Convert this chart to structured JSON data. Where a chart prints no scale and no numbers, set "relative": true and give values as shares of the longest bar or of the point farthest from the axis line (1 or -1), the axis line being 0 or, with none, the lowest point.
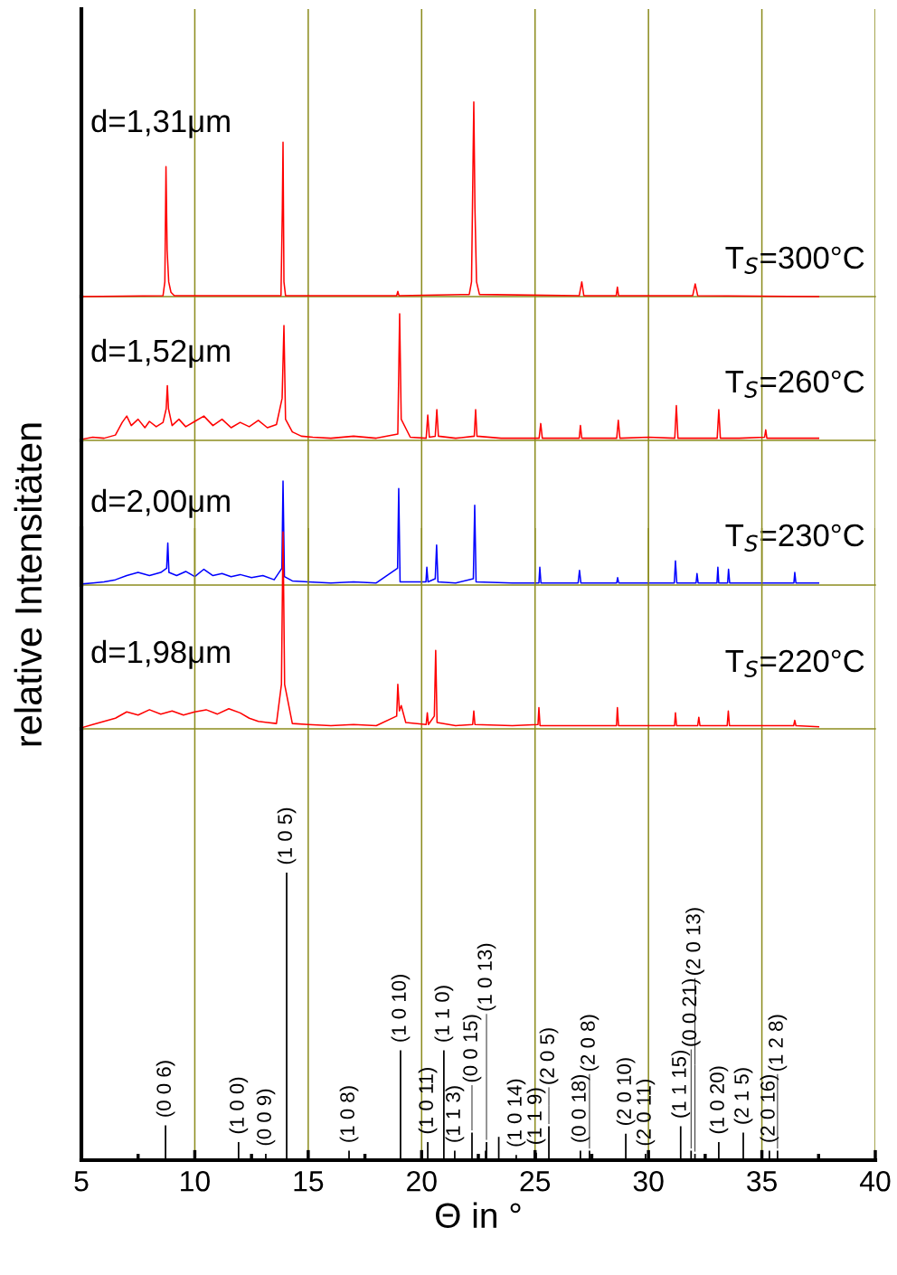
{
  "chart_data": [
    {
      "type": "line",
      "relative": true,
      "grid": "x",
      "tick_labels": false,
      "xlim": [
        5,
        40
      ],
      "xticks": [
        5,
        10,
        15,
        20,
        25,
        30,
        35,
        40
      ],
      "annotations": [
        "d=1,31μm"
      ],
      "series": [
        {
          "name": "T$_{S}$=300°C",
          "color": "#ff0000",
          "x": [
            5,
            8.6,
            8.68,
            8.73,
            8.78,
            8.85,
            8.95,
            9.1,
            13.8,
            13.86,
            13.89,
            13.93,
            14.0,
            18.9,
            18.95,
            19.0,
            22.1,
            22.2,
            22.27,
            22.3,
            22.35,
            22.42,
            22.55,
            26.95,
            27.06,
            27.15,
            28.58,
            28.63,
            28.68,
            31.95,
            32.06,
            32.17,
            37.5
          ],
          "values": [
            0,
            0.005,
            0.076,
            0.668,
            0.239,
            0.076,
            0.022,
            0.005,
            0.005,
            0.457,
            0.793,
            0.076,
            0.005,
            0.005,
            0.027,
            0.005,
            0.011,
            0.076,
            0.728,
            1,
            0.457,
            0.076,
            0.011,
            0.005,
            0.076,
            0.005,
            0.005,
            0.049,
            0.005,
            0.005,
            0.065,
            0.005,
            0
          ]
        }
      ]
    },
    {
      "type": "line",
      "relative": true,
      "grid": "x",
      "tick_labels": false,
      "xlim": [
        5,
        40
      ],
      "xticks": [
        5,
        10,
        15,
        20,
        25,
        30,
        35,
        40
      ],
      "annotations": [
        "d=1,52μm"
      ],
      "series": [
        {
          "name": "T$_{S}$=260°C",
          "color": "#ff0000",
          "x": [
            5,
            5.5,
            6,
            6.5,
            6.8,
            7.0,
            7.2,
            7.5,
            7.8,
            8.0,
            8.3,
            8.6,
            8.74,
            8.79,
            8.84,
            9.0,
            9.3,
            9.6,
            10.0,
            10.4,
            10.8,
            11.2,
            11.6,
            12.0,
            12.4,
            12.8,
            13.2,
            13.6,
            13.85,
            13.93,
            14.0,
            14.3,
            14.7,
            15.2,
            16,
            17,
            18,
            18.95,
            19.03,
            19.1,
            19.5,
            20.2,
            20.27,
            20.34,
            20.6,
            20.67,
            20.74,
            21.5,
            22.32,
            22.38,
            22.44,
            23.5,
            25.18,
            25.25,
            25.32,
            26.95,
            27.0,
            27.06,
            28.6,
            28.67,
            28.74,
            30,
            31.16,
            31.23,
            31.3,
            33.03,
            33.1,
            33.17,
            34,
            35.12,
            35.17,
            35.22,
            36.5,
            37.5
          ],
          "values": [
            0.008,
            0.025,
            0.017,
            0.042,
            0.142,
            0.192,
            0.117,
            0.167,
            0.1,
            0.15,
            0.108,
            0.142,
            0.25,
            0.433,
            0.25,
            0.117,
            0.167,
            0.108,
            0.15,
            0.192,
            0.117,
            0.167,
            0.1,
            0.142,
            0.108,
            0.158,
            0.1,
            0.125,
            0.333,
            0.908,
            0.167,
            0.067,
            0.033,
            0.025,
            0.017,
            0.033,
            0.017,
            0.05,
            1,
            0.167,
            0.025,
            0.017,
            0.2,
            0.025,
            0.033,
            0.242,
            0.033,
            0.017,
            0.033,
            0.242,
            0.033,
            0.017,
            0.017,
            0.133,
            0.017,
            0.017,
            0.117,
            0.017,
            0.017,
            0.158,
            0.017,
            0.025,
            0.017,
            0.275,
            0.017,
            0.017,
            0.242,
            0.017,
            0.017,
            0.025,
            0.083,
            0.017,
            0.017,
            0.017
          ]
        }
      ]
    },
    {
      "type": "line",
      "relative": true,
      "grid": "x",
      "tick_labels": false,
      "xlim": [
        5,
        40
      ],
      "xticks": [
        5,
        10,
        15,
        20,
        25,
        30,
        35,
        40
      ],
      "annotations": [
        "d=2,00μm"
      ],
      "series": [
        {
          "name": "T$_{S}$=230°C",
          "color": "#0000ff",
          "x": [
            5,
            5.5,
            6,
            6.5,
            7.0,
            7.5,
            8.0,
            8.5,
            8.76,
            8.81,
            8.86,
            9.2,
            9.6,
            10.0,
            10.4,
            10.8,
            11.2,
            11.6,
            12.0,
            12.5,
            13.0,
            13.5,
            13.84,
            13.89,
            13.95,
            14.3,
            15,
            16,
            17,
            18,
            18.94,
            18.99,
            19.05,
            20.19,
            20.23,
            20.28,
            20.6,
            20.66,
            20.72,
            21.5,
            22.28,
            22.34,
            22.4,
            24,
            25.17,
            25.21,
            25.26,
            26.9,
            26.96,
            27.02,
            28.6,
            28.64,
            28.69,
            30,
            31.14,
            31.19,
            31.25,
            32.1,
            32.14,
            32.19,
            33.02,
            33.06,
            33.1,
            33.49,
            33.53,
            33.58,
            35,
            36.41,
            36.45,
            36.5,
            37.5
          ],
          "values": [
            0.01,
            0.02,
            0.03,
            0.051,
            0.091,
            0.121,
            0.091,
            0.121,
            0.162,
            0.404,
            0.121,
            0.091,
            0.131,
            0.081,
            0.152,
            0.091,
            0.111,
            0.081,
            0.101,
            0.071,
            0.091,
            0.051,
            0.162,
            1,
            0.081,
            0.04,
            0.03,
            0.02,
            0.03,
            0.02,
            0.162,
            0.929,
            0.03,
            0.03,
            0.172,
            0.03,
            0.061,
            0.384,
            0.03,
            0.02,
            0.061,
            0.768,
            0.03,
            0.02,
            0.02,
            0.172,
            0.02,
            0.02,
            0.141,
            0.02,
            0.02,
            0.071,
            0.02,
            0.02,
            0.02,
            0.232,
            0.02,
            0.02,
            0.111,
            0.02,
            0.02,
            0.172,
            0.02,
            0.02,
            0.152,
            0.02,
            0.02,
            0.02,
            0.121,
            0.02,
            0.02
          ]
        }
      ]
    },
    {
      "type": "line",
      "relative": true,
      "grid": "x",
      "tick_labels": false,
      "xlim": [
        5,
        40
      ],
      "xticks": [
        5,
        10,
        15,
        20,
        25,
        30,
        35,
        40
      ],
      "annotations": [
        "d=1,98μm"
      ],
      "series": [
        {
          "name": "T$_{S}$=220°C",
          "color": "#ff0000",
          "x": [
            5,
            5.5,
            6,
            6.5,
            7.0,
            7.5,
            8.0,
            8.5,
            9.0,
            9.5,
            10.0,
            10.5,
            11.0,
            11.5,
            12.0,
            12.4,
            12.8,
            13.2,
            13.6,
            13.82,
            13.89,
            13.96,
            14.3,
            15,
            16,
            17,
            18,
            18.9,
            18.95,
            19.02,
            19.1,
            19.3,
            20.2,
            20.25,
            20.3,
            20.56,
            20.62,
            20.68,
            21.5,
            22.25,
            22.3,
            22.35,
            24,
            25.13,
            25.17,
            25.22,
            27,
            28.59,
            28.63,
            28.68,
            30,
            31.15,
            31.19,
            31.24,
            32.17,
            32.22,
            32.27,
            33.47,
            33.52,
            33.57,
            35,
            36.4,
            36.45,
            36.5,
            37.5
          ],
          "values": [
            0.005,
            0.022,
            0.038,
            0.054,
            0.086,
            0.07,
            0.097,
            0.075,
            0.091,
            0.07,
            0.086,
            0.097,
            0.075,
            0.102,
            0.081,
            0.054,
            0.038,
            0.032,
            0.027,
            0.226,
            1,
            0.226,
            0.027,
            0.022,
            0.016,
            0.022,
            0.016,
            0.065,
            0.226,
            0.091,
            0.118,
            0.032,
            0.022,
            0.081,
            0.022,
            0.065,
            0.398,
            0.032,
            0.016,
            0.022,
            0.091,
            0.022,
            0.016,
            0.022,
            0.108,
            0.016,
            0.016,
            0.016,
            0.108,
            0.016,
            0.016,
            0.016,
            0.081,
            0.016,
            0.016,
            0.059,
            0.016,
            0.016,
            0.091,
            0.016,
            0.016,
            0.016,
            0.043,
            0.016,
            0.011
          ]
        }
      ]
    },
    {
      "type": "bar",
      "relative": true,
      "grid": "x",
      "tick_labels": "x",
      "xlim": [
        5,
        40
      ],
      "xticks": [
        5,
        {
          "value": 7.5,
          "label": null
        },
        10,
        {
          "value": 12.5,
          "label": null
        },
        15,
        {
          "value": 17.5,
          "label": null
        },
        20,
        {
          "value": 22.5,
          "label": null
        },
        25,
        {
          "value": 27.5,
          "label": null
        },
        30,
        {
          "value": 32.5,
          "label": null
        },
        35,
        {
          "value": 37.5,
          "label": null
        },
        40
      ],
      "xlabel": "Θ in °",
      "ylabel": "relative Intensitäten",
      "series": [
        {
          "color": "#000000",
          "x": [
            8.71,
            11.93,
            13.13,
            14.05,
            16.8,
            19.07,
            20.27,
            20.98,
            21.46,
            22.22,
            22.82,
            22.86,
            23.4,
            24.17,
            25.05,
            25.61,
            27.0,
            27.4,
            29.0,
            29.87,
            31.42,
            31.88,
            32.05,
            33.1,
            34.18,
            35.33,
            35.69
          ],
          "values": [
            0.121,
            0.063,
            0.022,
            1,
            0.033,
            0.382,
            0.063,
            0.382,
            0.033,
            0.096,
            0.033,
            0.063,
            0.081,
            0.018,
            0.026,
            0.118,
            0.033,
            0.033,
            0.092,
            0.022,
            0.118,
            0.033,
            0.022,
            0.063,
            0.096,
            0.033,
            0.033
          ]
        }
      ],
      "annotations": [
        {
          "text": "(0 0 6)",
          "x": 8.71,
          "y": 0.121
        },
        {
          "text": "(1 0 0)",
          "x": 11.93,
          "y": 0.063
        },
        {
          "text": "(0 0 9)",
          "x": 13.13,
          "y": 0.022
        },
        {
          "text": "(1 0 5)",
          "x": 14.05,
          "y": 1
        },
        {
          "text": "(1 0 8)",
          "x": 16.8,
          "y": 0.033
        },
        {
          "text": "(1 0 10)",
          "x": 19.07,
          "y": 0.382
        },
        {
          "text": "(1 0 11)",
          "x": 20.27,
          "y": 0.063
        },
        {
          "text": "(1 1 0)",
          "x": 20.98,
          "y": 0.382
        },
        {
          "text": "(1 1 3)",
          "x": 21.46,
          "y": 0.033
        },
        {
          "text": "(0 0 15)",
          "x": 22.22,
          "y": 0.096
        },
        {
          "text": "(1 0 13)",
          "x": 22.86,
          "y": 0.063
        },
        {
          "text": "(1 0 14)",
          "x": 24.17,
          "y": 0.018
        },
        {
          "text": "(1 1 9)",
          "x": 25.05,
          "y": 0.026
        },
        {
          "text": "(2 0 5)",
          "x": 25.61,
          "y": 0.118
        },
        {
          "text": "(0 0 18)",
          "x": 27.0,
          "y": 0.033
        },
        {
          "text": "(2 0 8)",
          "x": 27.4,
          "y": 0.033
        },
        {
          "text": "(2 0 10)",
          "x": 29.0,
          "y": 0.092
        },
        {
          "text": "(2 0 11)",
          "x": 29.87,
          "y": 0.022
        },
        {
          "text": "(1 1 15)",
          "x": 31.42,
          "y": 0.118
        },
        {
          "text": "(0 0 21)",
          "x": 31.88,
          "y": 0.033
        },
        {
          "text": "(2 0 13)",
          "x": 32.05,
          "y": 0.022
        },
        {
          "text": "(1 0 20)",
          "x": 33.1,
          "y": 0.063
        },
        {
          "text": "(2 1 5)",
          "x": 34.18,
          "y": 0.096
        },
        {
          "text": "(2 0 16)",
          "x": 35.33,
          "y": 0.033
        },
        {
          "text": "(1 2 8)",
          "x": 35.69,
          "y": 0.033
        }
      ]
    }
  ]
}
